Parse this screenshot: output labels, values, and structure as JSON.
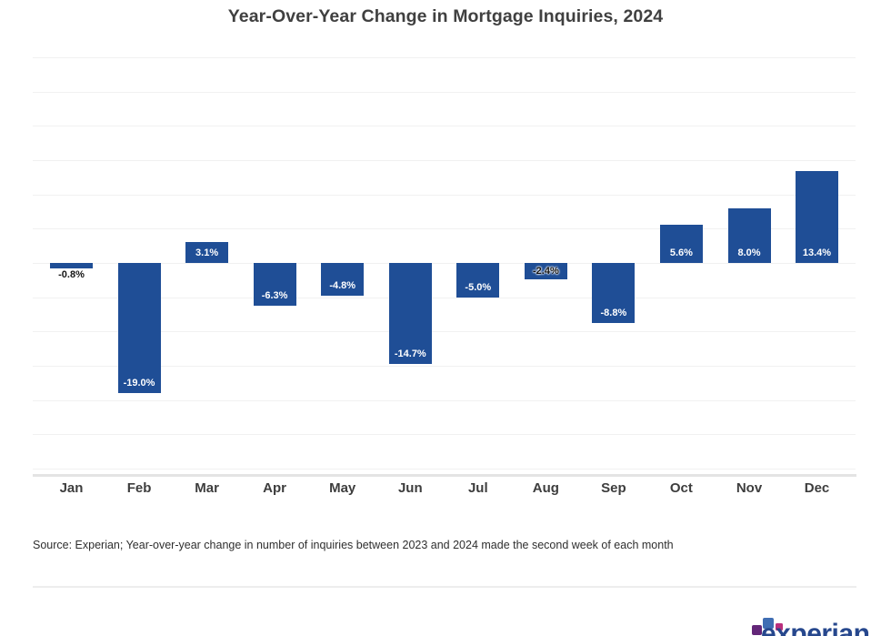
{
  "page": {
    "source_note": "Source: Experian; Year-over-year change in number of inquiries between 2023 and 2024 made the second week of each month"
  },
  "chart_data": {
    "type": "bar",
    "title": "Year-Over-Year Change in Mortgage Inquiries, 2024",
    "categories": [
      "Jan",
      "Feb",
      "Mar",
      "Apr",
      "May",
      "Jun",
      "Jul",
      "Aug",
      "Sep",
      "Oct",
      "Nov",
      "Dec"
    ],
    "values": [
      -0.8,
      -19.0,
      3.1,
      -6.3,
      -4.8,
      -14.7,
      -5.0,
      -2.4,
      -8.8,
      5.6,
      8.0,
      13.4
    ],
    "value_labels": [
      "-0.8%",
      "-19.0%",
      "3.1%",
      "-6.3%",
      "-4.8%",
      "-14.7%",
      "-5.0%",
      "-2.4%",
      "-8.8%",
      "5.6%",
      "8.0%",
      "13.4%"
    ],
    "label_styles": [
      "below-black",
      "inside-white",
      "inside-white",
      "inside-white",
      "inside-white",
      "inside-white",
      "inside-white",
      "inside-black",
      "inside-white",
      "inside-white",
      "inside-white",
      "inside-white"
    ],
    "xlabel": "",
    "ylabel": "",
    "bar_color": "#1F4E96",
    "ylim": [
      -31,
      30.5
    ],
    "grid": true,
    "grid_step": 5,
    "gridline_range": [
      30,
      -30
    ],
    "y_axis_tick_labels_visible": false,
    "legend_position": "none"
  },
  "branding": {
    "logo_text": "experian",
    "logo_text_color": "#26478D",
    "logo_square_purple": "#632678",
    "logo_square_blue": "#406EB3",
    "logo_square_magenta": "#BA2F7D"
  }
}
